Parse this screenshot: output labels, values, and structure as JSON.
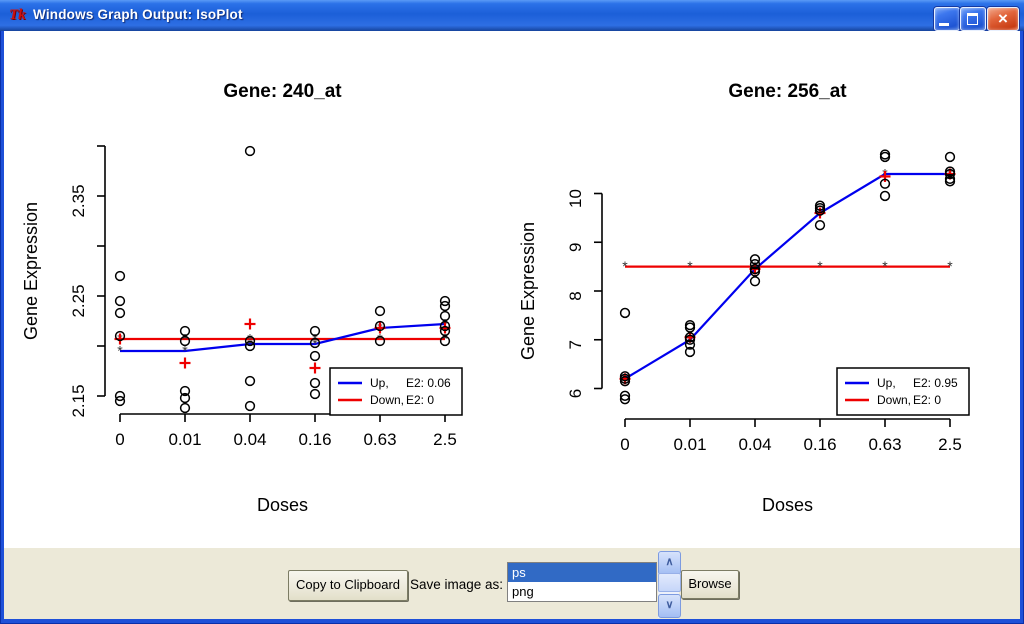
{
  "window": {
    "title": "Windows Graph Output: IsoPlot",
    "icon_text": "Tk"
  },
  "toolbar": {
    "copy_button_label": "Copy to Clipboard",
    "save_label": "Save image as:",
    "format_options": [
      "ps",
      "png"
    ],
    "selected_format": "ps",
    "browse_button_label": "Browse"
  },
  "colors": {
    "up_line": "#0000EE",
    "down_line": "#EE0000",
    "list_selection": "#316AC5",
    "control_bar_bg": "#ECE9D8",
    "titlebar_blue": "#1E50D8"
  },
  "chart_data": [
    {
      "type": "scatter",
      "title": "Gene: 240_at",
      "xlabel": "Doses",
      "ylabel": "Gene Expression",
      "x_categories": [
        "0",
        "0.01",
        "0.04",
        "0.16",
        "0.63",
        "2.5"
      ],
      "y_ticks": [
        2.15,
        2.2,
        2.25,
        2.3,
        2.35,
        2.4
      ],
      "y_tick_labels": [
        "2.15",
        "",
        "2.25",
        "",
        "2.35",
        ""
      ],
      "ylim": [
        2.13,
        2.41
      ],
      "grid": false,
      "legend_position": "bottom-right",
      "scatter": [
        [
          2.27,
          2.245,
          2.233,
          2.21,
          2.15,
          2.145
        ],
        [
          2.215,
          2.205,
          2.155,
          2.148,
          2.138
        ],
        [
          2.395,
          2.205,
          2.2,
          2.165,
          2.14
        ],
        [
          2.215,
          2.203,
          2.19,
          2.163,
          2.152
        ],
        [
          2.235,
          2.22,
          2.205
        ],
        [
          2.245,
          2.24,
          2.23,
          2.22,
          2.215,
          2.205
        ]
      ],
      "up_fit": [
        2.195,
        2.195,
        2.202,
        2.202,
        2.218,
        2.222
      ],
      "down_fit": [
        2.207,
        2.207,
        2.207,
        2.207,
        2.207,
        2.207
      ],
      "dose_means": [
        2.207,
        2.183,
        2.222,
        2.178,
        2.218,
        2.218
      ],
      "legend": [
        {
          "name": "Up,",
          "e2": "E2: 0.06",
          "color": "#0000EE"
        },
        {
          "name": "Down,",
          "e2": "E2: 0",
          "color": "#EE0000"
        }
      ]
    },
    {
      "type": "scatter",
      "title": "Gene: 256_at",
      "xlabel": "Doses",
      "ylabel": "Gene Expression",
      "x_categories": [
        "0",
        "0.01",
        "0.04",
        "0.16",
        "0.63",
        "2.5"
      ],
      "y_ticks": [
        6,
        7,
        8,
        9,
        10
      ],
      "y_tick_labels": [
        "6",
        "7",
        "8",
        "9",
        "10"
      ],
      "ylim": [
        5.7,
        11.0
      ],
      "grid": false,
      "legend_position": "bottom-right",
      "scatter": [
        [
          7.55,
          6.25,
          6.2,
          6.15,
          5.85,
          5.78
        ],
        [
          7.3,
          7.25,
          7.05,
          7.0,
          6.9,
          6.75
        ],
        [
          8.65,
          8.55,
          8.45,
          8.4,
          8.2
        ],
        [
          9.75,
          9.7,
          9.65,
          9.35
        ],
        [
          10.8,
          10.75,
          10.2,
          9.95
        ],
        [
          10.75,
          10.45,
          10.4,
          10.3,
          10.25
        ]
      ],
      "up_fit": [
        6.2,
        7.0,
        8.45,
        9.6,
        10.4,
        10.4
      ],
      "down_fit": [
        8.5,
        8.5,
        8.5,
        8.5,
        8.5,
        8.5
      ],
      "dose_means": [
        6.2,
        7.05,
        8.45,
        9.6,
        10.35,
        10.4
      ],
      "legend": [
        {
          "name": "Up,",
          "e2": "E2: 0.95",
          "color": "#0000EE"
        },
        {
          "name": "Down,",
          "e2": "E2: 0",
          "color": "#EE0000"
        }
      ]
    }
  ]
}
